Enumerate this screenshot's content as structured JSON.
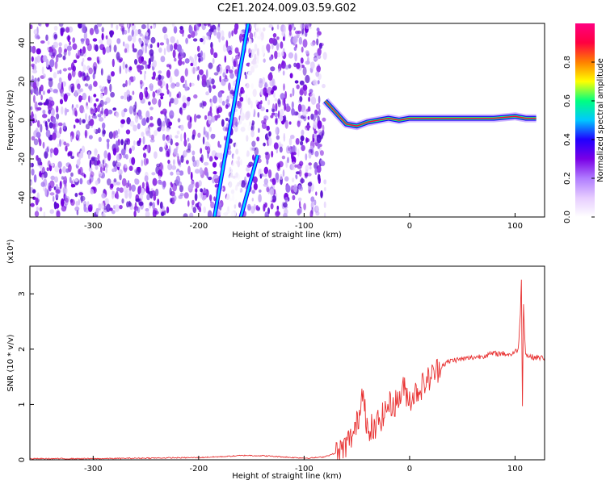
{
  "title": "C2E1.2024.009.03.59.G02",
  "chart_data": [
    {
      "type": "heatmap",
      "xlabel": "Height of straight line (km)",
      "ylabel": "Frequency (Hz)",
      "xlim": [
        -360,
        128
      ],
      "ylim": [
        -50,
        50
      ],
      "x_ticks": [
        -300,
        -200,
        -100,
        0,
        100
      ],
      "y_ticks": [
        -40,
        -20,
        0,
        20,
        40
      ],
      "colorbar": {
        "label": "Normalized spectral amplitude",
        "range": [
          0,
          1
        ],
        "ticks": [
          "0.0",
          "0.2",
          "0.4",
          "0.6",
          "0.8"
        ],
        "tick_values": [
          0,
          0.2,
          0.4,
          0.6,
          0.8
        ],
        "colors": [
          "#ffffff",
          "#e6ccff",
          "#b07cff",
          "#7a00e6",
          "#2000ff",
          "#00c8ff",
          "#00ff80",
          "#ffff00",
          "#ff8000",
          "#ff0040",
          "#ff0080"
        ]
      },
      "features": {
        "noise_region_x": [
          -360,
          -80
        ],
        "direct_lines": [
          {
            "x": [
              -185,
              -153
            ],
            "y": [
              -50,
              50
            ]
          },
          {
            "x": [
              -160,
              -144
            ],
            "y": [
              -50,
              -18
            ]
          }
        ],
        "signal_trace": {
          "x": [
            -80,
            -70,
            -60,
            -50,
            -40,
            -30,
            -20,
            -10,
            0,
            20,
            40,
            60,
            80,
            100,
            110,
            120
          ],
          "y": [
            10,
            4,
            -2,
            -3,
            -1,
            0,
            1,
            0,
            1,
            1,
            1,
            1,
            1,
            2,
            1,
            1
          ]
        }
      }
    },
    {
      "type": "line",
      "xlabel": "Height of straight line (km)",
      "ylabel": "SNR (10 * v/v)",
      "scale_label": "(x10⁴)",
      "xlim": [
        -360,
        128
      ],
      "ylim": [
        0,
        3.5
      ],
      "x_ticks": [
        -300,
        -200,
        -100,
        0,
        100
      ],
      "y_ticks": [
        0,
        1,
        2,
        3
      ],
      "series": [
        {
          "color": "#e83030",
          "x": [
            -360,
            -300,
            -250,
            -200,
            -175,
            -155,
            -135,
            -110,
            -95,
            -82,
            -65,
            -52,
            -47,
            -44,
            -41,
            -38,
            -36,
            -33,
            -30,
            -25,
            -20,
            -15,
            -10,
            -6,
            -3,
            0,
            5,
            10,
            15,
            20,
            25,
            30,
            35,
            40,
            50,
            60,
            70,
            75,
            80,
            90,
            95,
            100,
            103,
            105,
            106,
            107,
            108,
            110,
            115,
            128
          ],
          "y": [
            0.02,
            0.02,
            0.03,
            0.04,
            0.06,
            0.08,
            0.07,
            0.04,
            0.03,
            0.05,
            0.15,
            0.5,
            0.9,
            1.4,
            0.7,
            0.3,
            0.6,
            0.5,
            0.7,
            0.8,
            1.0,
            1.0,
            1.1,
            1.3,
            1.2,
            1.1,
            1.2,
            1.3,
            1.4,
            1.5,
            1.6,
            1.7,
            1.75,
            1.8,
            1.82,
            1.85,
            1.88,
            1.9,
            1.92,
            1.92,
            1.9,
            1.95,
            2.0,
            2.6,
            3.3,
            1.0,
            2.8,
            1.9,
            1.86,
            1.84
          ]
        }
      ]
    }
  ]
}
